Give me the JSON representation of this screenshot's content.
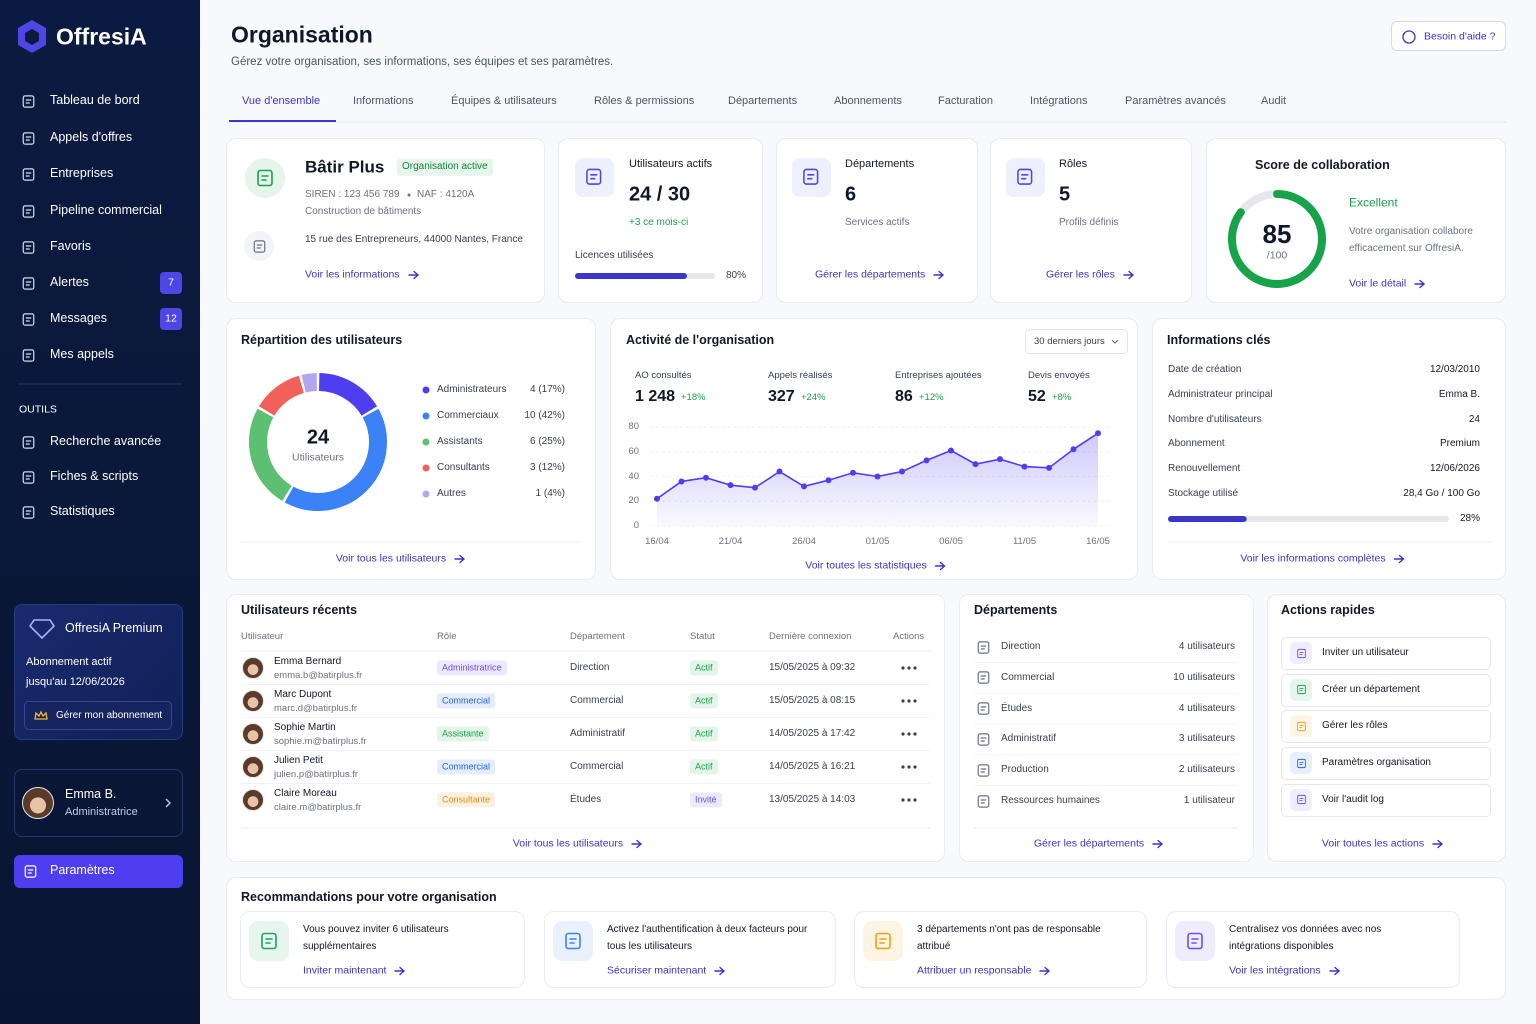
{
  "sidebar": {
    "brand": "OffresiA",
    "nav": [
      {
        "label": "Tableau de bord"
      },
      {
        "label": "Appels d'offres"
      },
      {
        "label": "Entreprises"
      },
      {
        "label": "Pipeline commercial"
      },
      {
        "label": "Favoris"
      },
      {
        "label": "Alertes",
        "badge": 7
      },
      {
        "label": "Messages",
        "badge": 12
      },
      {
        "label": "Mes appels"
      }
    ],
    "tools_heading": "OUTILS",
    "tools": [
      "Recherche avancée",
      "Fiches & scripts",
      "Statistiques"
    ],
    "premium": {
      "title": "OffresiA Premium",
      "status": "Abonnement actif",
      "until": "jusqu'au 12/06/2026",
      "button": "Gérer mon abonnement"
    },
    "user": {
      "name": "Emma B.",
      "role": "Administratrice"
    },
    "settings": "Paramètres"
  },
  "header": {
    "title": "Organisation",
    "subtitle": "Gérez votre organisation, ses informations, ses équipes et ses paramètres.",
    "help": "Besoin d'aide ?"
  },
  "tabs": [
    "Vue d'ensemble",
    "Informations",
    "Équipes & utilisateurs",
    "Rôles & permissions",
    "Départements",
    "Abonnements",
    "Facturation",
    "Intégrations",
    "Paramètres avancés",
    "Audit"
  ],
  "organisation": {
    "name": "Bâtir Plus",
    "status": "Organisation active",
    "siren": "SIREN : 123 456 789",
    "naf": "NAF : 4120A",
    "activity": "Construction de bâtiments",
    "address": "15 rue des Entrepreneurs, 44000 Nantes, France",
    "link": "Voir les informations"
  },
  "stats": [
    {
      "label": "Utilisateurs actifs",
      "value": "24 / 30",
      "note": "+3 ce mois-ci"
    },
    {
      "label": "Départements",
      "value": 6,
      "note": "Services actifs",
      "link": "Gérer les départements"
    },
    {
      "label": "Rôles",
      "value": 5,
      "note": "Profils définis",
      "link": "Gérer les rôles"
    }
  ],
  "licences": {
    "label": "Licences utilisées",
    "value": 80,
    "value_label": "80%"
  },
  "score": {
    "title": "Score de collaboration",
    "value": 85,
    "scale": {
      "value": 100,
      "label": "/100"
    },
    "rating": "Excellent",
    "description": "Votre organisation collabore efficacement sur OffresiA.",
    "link": "Voir le détail",
    "color": "#16a34a"
  },
  "user_distribution": {
    "type": "donut",
    "title": "Répartition des utilisateurs",
    "total": 24,
    "total_label": "Utilisateurs",
    "categories": [
      "Administrateurs",
      "Commerciaux",
      "Assistants",
      "Consultants",
      "Autres"
    ],
    "values": [
      4,
      10,
      6,
      3,
      1
    ],
    "value_labels": [
      "4 (17%)",
      "10 (42%)",
      "6 (25%)",
      "3 (12%)",
      "1 (4%)"
    ],
    "colors": [
      "#4f3df0",
      "#3b82f6",
      "#5cbf72",
      "#f0625a",
      "#b3a6ec"
    ],
    "link": "Voir tous les utilisateurs"
  },
  "activity": {
    "title": "Activité de l'organisation",
    "period": "30 derniers jours",
    "kpis": [
      {
        "label": "AO consultés",
        "value": "1 248",
        "delta": "+18%"
      },
      {
        "label": "Appels réalisés",
        "value": "327",
        "delta": "+24%"
      },
      {
        "label": "Entreprises ajoutées",
        "value": "86",
        "delta": "+12%"
      },
      {
        "label": "Devis envoyés",
        "value": "52",
        "delta": "+8%"
      }
    ],
    "chart": {
      "type": "area",
      "categories": [
        "16/04",
        null,
        null,
        "21/04",
        null,
        null,
        "26/04",
        null,
        null,
        "01/05",
        null,
        null,
        "06/05",
        null,
        null,
        "11/05",
        null,
        null,
        "16/05"
      ],
      "values": [
        22,
        36,
        39,
        33,
        31,
        44,
        32,
        37,
        43,
        40,
        44,
        53,
        61,
        50,
        54,
        48,
        47,
        62,
        75
      ],
      "color": "#4f3df0",
      "ylim": [
        0,
        80
      ],
      "yticks": [
        0,
        20,
        40,
        60,
        80
      ],
      "grid": true
    },
    "link": "Voir toutes les statistiques"
  },
  "key_info": {
    "title": "Informations clés",
    "rows": [
      [
        "Date de création",
        "12/03/2010"
      ],
      [
        "Administrateur principal",
        "Emma B."
      ],
      [
        "Nombre d'utilisateurs",
        24
      ],
      [
        "Abonnement",
        "Premium"
      ],
      [
        "Renouvellement",
        "12/06/2026"
      ],
      [
        "Stockage utilisé",
        "28,4 Go / 100 Go"
      ]
    ],
    "storage": {
      "value": 28,
      "value_label": "28%"
    },
    "link": "Voir les informations complètes"
  },
  "recent_users": {
    "title": "Utilisateurs récents",
    "columns": [
      "Utilisateur",
      "Rôle",
      "Département",
      "Statut",
      "Dernière connexion",
      "Actions"
    ],
    "rows": [
      {
        "name": "Emma Bernard",
        "email": "emma.b@batirplus.fr",
        "role": "Administratrice",
        "role_color": "#6d4ee8",
        "department": "Direction",
        "status": "Actif",
        "status_color": "#16a34a",
        "last_login": "15/05/2025 à 09:32"
      },
      {
        "name": "Marc Dupont",
        "email": "marc.d@batirplus.fr",
        "role": "Commercial",
        "role_color": "#2563eb",
        "department": "Commercial",
        "status": "Actif",
        "status_color": "#16a34a",
        "last_login": "15/05/2025 à 08:15"
      },
      {
        "name": "Sophie Martin",
        "email": "sophie.m@batirplus.fr",
        "role": "Assistante",
        "role_color": "#16a34a",
        "department": "Administratif",
        "status": "Actif",
        "status_color": "#16a34a",
        "last_login": "14/05/2025 à 17:42"
      },
      {
        "name": "Julien Petit",
        "email": "julien.p@batirplus.fr",
        "role": "Commercial",
        "role_color": "#2563eb",
        "department": "Commercial",
        "status": "Actif",
        "status_color": "#16a34a",
        "last_login": "14/05/2025 à 16:21"
      },
      {
        "name": "Claire Moreau",
        "email": "claire.m@batirplus.fr",
        "role": "Consultante",
        "role_color": "#e8890c",
        "department": "Études",
        "status": "Invité",
        "status_color": "#6d4ee8",
        "last_login": "13/05/2025 à 14:03"
      }
    ],
    "link": "Voir tous les utilisateurs"
  },
  "departments": {
    "title": "Départements",
    "rows": [
      {
        "name": "Direction",
        "count": "4 utilisateurs"
      },
      {
        "name": "Commercial",
        "count": "10 utilisateurs"
      },
      {
        "name": "Études",
        "count": "4 utilisateurs"
      },
      {
        "name": "Administratif",
        "count": "3 utilisateurs"
      },
      {
        "name": "Production",
        "count": "2 utilisateurs"
      },
      {
        "name": "Ressources humaines",
        "count": "1 utilisateur"
      }
    ],
    "link": "Gérer les départements"
  },
  "quick_actions": {
    "title": "Actions rapides",
    "items": [
      {
        "label": "Inviter un utilisateur",
        "color": "#6d4ee8"
      },
      {
        "label": "Créer un département",
        "color": "#16a34a"
      },
      {
        "label": "Gérer les rôles",
        "color": "#f59e0b"
      },
      {
        "label": "Paramètres organisation",
        "color": "#2563eb"
      },
      {
        "label": "Voir l'audit log",
        "color": "#6d4ee8"
      }
    ],
    "link": "Voir toutes les actions"
  },
  "recommendations": {
    "title": "Recommandations pour votre organisation",
    "items": [
      {
        "text": "Vous pouvez inviter 6 utilisateurs supplémentaires",
        "link": "Inviter maintenant",
        "color": "#22a06b"
      },
      {
        "text": "Activez l'authentification à deux facteurs pour tous les utilisateurs",
        "link": "Sécuriser maintenant",
        "color": "#3b82f6"
      },
      {
        "text": "3 départements n'ont pas de responsable attribué",
        "link": "Attribuer un responsable",
        "color": "#f59e0b"
      },
      {
        "text": "Centralisez vos données avec nos intégrations disponibles",
        "link": "Voir les intégrations",
        "color": "#6d4ee8"
      }
    ]
  }
}
